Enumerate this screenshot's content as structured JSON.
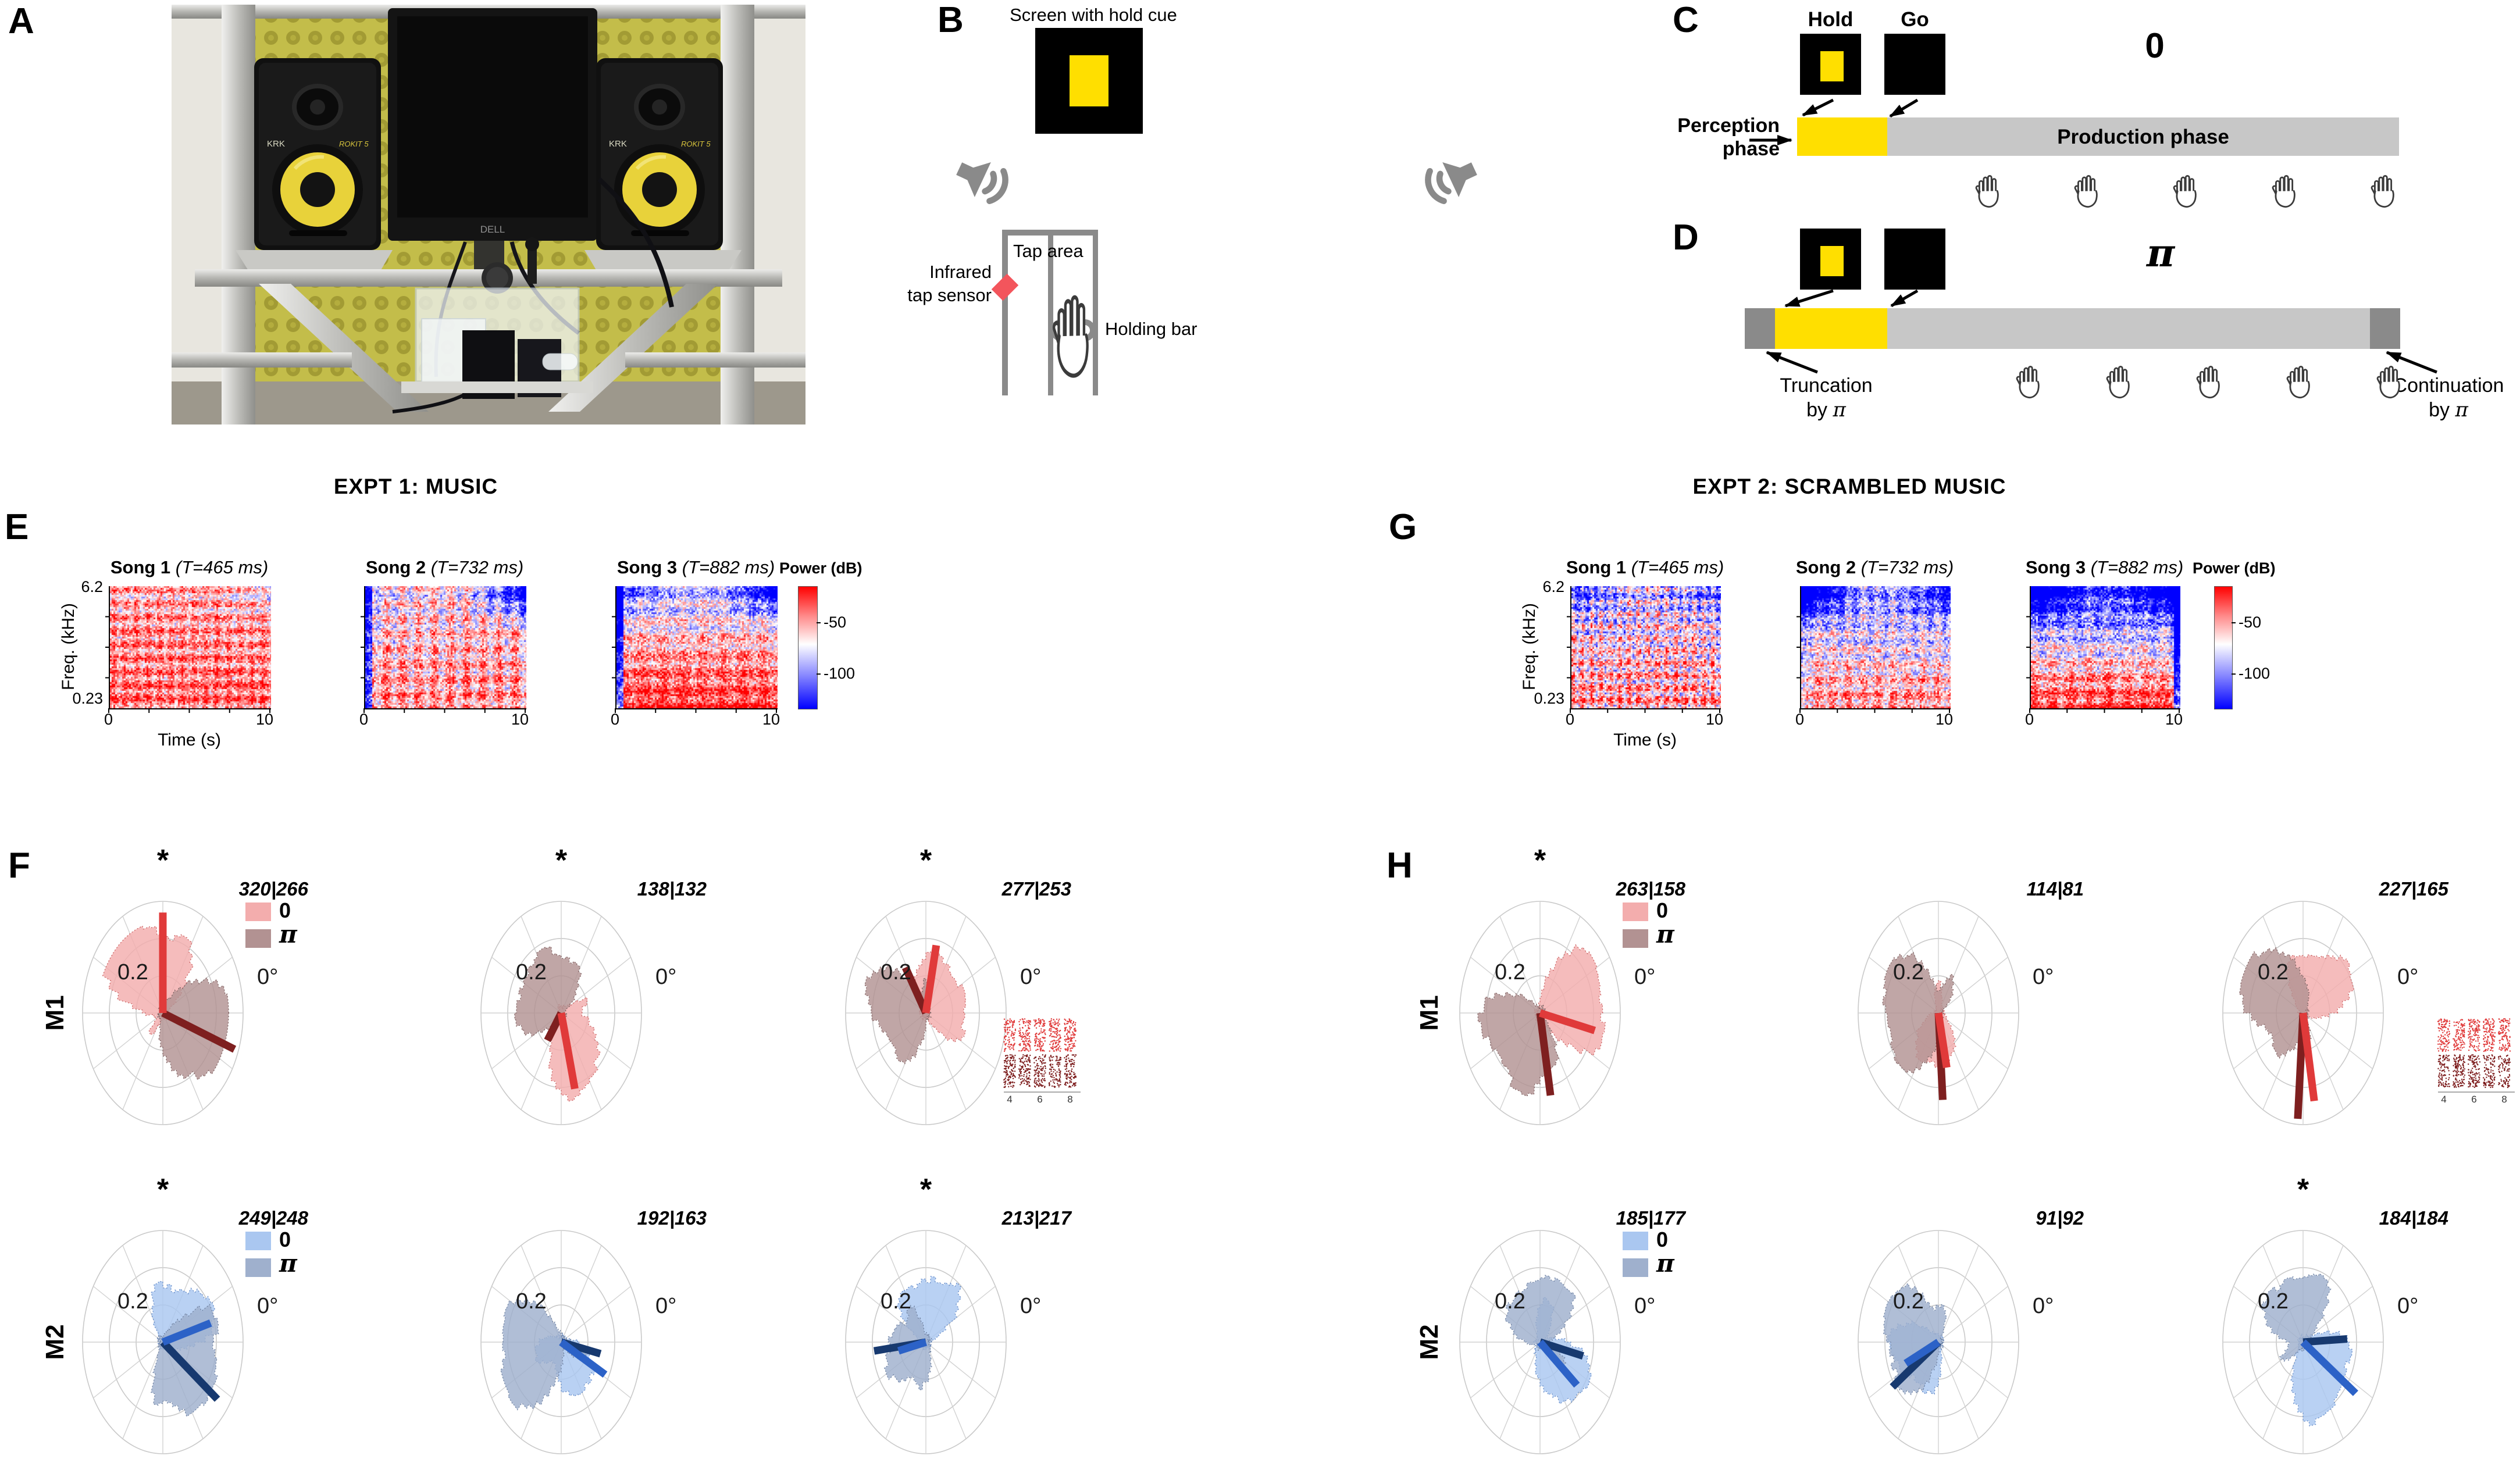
{
  "asterisk": "*",
  "panel_a": {
    "label": "A",
    "monitor_brand": "DELL",
    "speaker_brand": "KRK",
    "speaker_model": "ROKIT 5"
  },
  "panel_b": {
    "label": "B",
    "screen_title": "Screen with hold cue",
    "tap_area": "Tap area",
    "sensor_line1": "Infrared",
    "sensor_line2": "tap sensor",
    "holding_bar": "Holding bar"
  },
  "panel_c": {
    "label": "C",
    "hold": "Hold",
    "go": "Go",
    "condition_symbol": "0",
    "perception_line1": "Perception",
    "perception_line2": "phase",
    "production": "Production phase"
  },
  "panel_d": {
    "label": "D",
    "condition_symbol": "π",
    "truncation_line1": "Truncation",
    "continuation_line1": "Continuation",
    "by": "by",
    "pi_symbol": "π"
  },
  "axis": {
    "freq_label": "Freq. (kHz)",
    "freq_top": "6.2",
    "freq_bottom": "0.23",
    "time_label": "Time (s)",
    "t0": "0",
    "t1": "10",
    "power_label": "Power (dB)",
    "cb_hi": "-50",
    "cb_lo": "-100"
  },
  "colors": {
    "yellow": "#ffdf00",
    "bar_gray": "#c7c7c7",
    "bar_darkgray": "#8a8a8a",
    "sensor_red": "#f3555c",
    "m1": {
      "fill0": "#f3adad",
      "edge0": "#c96060",
      "fillpi": "#b29292",
      "edgepi": "#7d5f5f",
      "line0": "#e03a3a",
      "linepi": "#7e1f1f"
    },
    "m2": {
      "fill0": "#aac7f0",
      "edge0": "#5f86c4",
      "fillpi": "#9fb0cd",
      "edgepi": "#6c7f9f",
      "line0": "#2c62c7",
      "linepi": "#17396f"
    }
  },
  "chart_data": {
    "legend": {
      "zero": "0",
      "pi": "π"
    },
    "polar_style": {
      "radial_tick": "0.2",
      "angle_label": "0°",
      "rings": [
        0.333,
        0.667,
        1.0
      ]
    },
    "spectrograms": [
      {
        "panel": "E",
        "title": "EXPT 1: MUSIC",
        "type": "heatmap",
        "freq_range_khz": [
          0.23,
          6.2
        ],
        "time_range_s": [
          0,
          10
        ],
        "power_ticks_db": [
          -50,
          -100
        ],
        "songs": [
          {
            "name": "Song 1",
            "tempo": "(T=465 ms)",
            "texture": {
              "base": 0.45,
              "vgrad": 0.15,
              "noise": 0.9,
              "hbands": 9,
              "hamp": 0.25,
              "vstripes": 14,
              "vamp": 0.15,
              "tl": 0.0,
              "tr": 0.25,
              "lcol": 0.0,
              "rcol": 0.0
            }
          },
          {
            "name": "Song 2",
            "tempo": "(T=732 ms)",
            "texture": {
              "base": 0.25,
              "vgrad": 0.2,
              "noise": 0.95,
              "hbands": 8,
              "hamp": 0.2,
              "vstripes": 10,
              "vamp": 0.25,
              "tl": 0.15,
              "tr": 0.95,
              "lcol": 0.9,
              "rcol": 0.0
            }
          },
          {
            "name": "Song 3",
            "tempo": "(T=882 ms)",
            "texture": {
              "base": 0.3,
              "vgrad": 0.55,
              "noise": 0.95,
              "hbands": 7,
              "hamp": 0.2,
              "vstripes": 8,
              "vamp": 0.12,
              "tl": 0.35,
              "tr": 0.75,
              "lcol": 1.0,
              "rcol": 0.0
            }
          }
        ]
      },
      {
        "panel": "G",
        "title": "EXPT 2: SCRAMBLED MUSIC",
        "type": "heatmap",
        "freq_range_khz": [
          0.23,
          6.2
        ],
        "time_range_s": [
          0,
          10
        ],
        "power_ticks_db": [
          -50,
          -100
        ],
        "songs": [
          {
            "name": "Song 1",
            "tempo": "(T=465 ms)",
            "texture": {
              "base": 0.12,
              "vgrad": 0.3,
              "noise": 1.1,
              "hbands": 10,
              "hamp": 0.3,
              "vstripes": 16,
              "vamp": 0.3,
              "tl": 0.5,
              "tr": 0.35,
              "lcol": 0.0,
              "rcol": 0.0
            }
          },
          {
            "name": "Song 2",
            "tempo": "(T=732 ms)",
            "texture": {
              "base": 0.0,
              "vgrad": 0.45,
              "noise": 1.0,
              "hbands": 8,
              "hamp": 0.2,
              "vstripes": 10,
              "vamp": 0.2,
              "tl": 1.1,
              "tr": 0.45,
              "lcol": 0.3,
              "rcol": 0.0
            }
          },
          {
            "name": "Song 3",
            "tempo": "(T=882 ms)",
            "texture": {
              "base": -0.05,
              "vgrad": 0.85,
              "noise": 1.0,
              "hbands": 8,
              "hamp": 0.2,
              "vstripes": 8,
              "vamp": 0.15,
              "tl": 0.7,
              "tr": 0.6,
              "lcol": 0.0,
              "rcol": 0.9
            }
          }
        ]
      }
    ],
    "polar_rows": [
      {
        "panel": "F",
        "monkey": "M1",
        "palette": "m1",
        "plots": [
          {
            "counts": "320|266",
            "sig": true,
            "legend": true,
            "raster": false,
            "line0": {
              "deg": 90,
              "r": 0.9
            },
            "linepi": {
              "deg": -20,
              "r": 0.95
            },
            "lobes0": [
              [
                112,
                35,
                0.72
              ],
              [
                145,
                18,
                0.5
              ],
              [
                60,
                15,
                0.4
              ],
              [
                230,
                10,
                0.18
              ]
            ],
            "lobespi": [
              [
                5,
                28,
                0.78
              ],
              [
                -35,
                20,
                0.55
              ],
              [
                -75,
                18,
                0.4
              ],
              [
                90,
                8,
                0.15
              ]
            ]
          },
          {
            "counts": "138|132",
            "sig": true,
            "legend": false,
            "raster": false,
            "line0": {
              "deg": -76,
              "r": 0.7
            },
            "linepi": {
              "deg": 235,
              "r": 0.3
            },
            "lobes0": [
              [
                -50,
                35,
                0.55
              ],
              [
                -90,
                20,
                0.4
              ],
              [
                20,
                10,
                0.2
              ]
            ],
            "lobespi": [
              [
                150,
                30,
                0.42
              ],
              [
                100,
                25,
                0.4
              ],
              [
                195,
                20,
                0.35
              ],
              [
                60,
                15,
                0.3
              ]
            ]
          },
          {
            "counts": "277|253",
            "sig": true,
            "legend": false,
            "raster": true,
            "line0": {
              "deg": 78,
              "r": 0.62
            },
            "linepi": {
              "deg": 122,
              "r": 0.48
            },
            "lobes0": [
              [
                80,
                30,
                0.5
              ],
              [
                10,
                25,
                0.42
              ],
              [
                -30,
                15,
                0.3
              ]
            ],
            "lobespi": [
              [
                190,
                35,
                0.5
              ],
              [
                150,
                20,
                0.45
              ],
              [
                240,
                15,
                0.3
              ],
              [
                90,
                10,
                0.25
              ]
            ]
          }
        ]
      },
      {
        "panel": "F",
        "monkey": "M2",
        "palette": "m2",
        "plots": [
          {
            "counts": "249|248",
            "sig": true,
            "legend": true,
            "raster": false,
            "line0": {
              "deg": 16,
              "r": 0.62
            },
            "linepi": {
              "deg": -37,
              "r": 0.85
            },
            "lobes0": [
              [
                55,
                30,
                0.45
              ],
              [
                15,
                20,
                0.42
              ],
              [
                100,
                15,
                0.3
              ]
            ],
            "lobespi": [
              [
                -15,
                30,
                0.55
              ],
              [
                -65,
                25,
                0.5
              ],
              [
                25,
                15,
                0.4
              ],
              [
                -100,
                10,
                0.3
              ]
            ]
          },
          {
            "counts": "192|163",
            "sig": false,
            "legend": false,
            "raster": false,
            "line0": {
              "deg": -28,
              "r": 0.62
            },
            "linepi": {
              "deg": -12,
              "r": 0.5
            },
            "lobes0": [
              [
                -35,
                25,
                0.4
              ],
              [
                -80,
                20,
                0.35
              ],
              [
                200,
                25,
                0.3
              ]
            ],
            "lobespi": [
              [
                190,
                35,
                0.5
              ],
              [
                230,
                25,
                0.45
              ],
              [
                150,
                20,
                0.4
              ],
              [
                -20,
                15,
                0.3
              ]
            ]
          },
          {
            "counts": "213|217",
            "sig": true,
            "legend": false,
            "raster": false,
            "line0": {
              "deg": 193,
              "r": 0.35
            },
            "linepi": {
              "deg": 187,
              "r": 0.65
            },
            "lobes0": [
              [
                85,
                30,
                0.5
              ],
              [
                45,
                15,
                0.35
              ],
              [
                130,
                15,
                0.3
              ]
            ],
            "lobespi": [
              [
                175,
                30,
                0.4
              ],
              [
                260,
                20,
                0.35
              ],
              [
                215,
                15,
                0.3
              ],
              [
                120,
                10,
                0.25
              ]
            ]
          }
        ]
      },
      {
        "panel": "H",
        "monkey": "M1",
        "palette": "m1",
        "plots": [
          {
            "counts": "263|158",
            "sig": true,
            "legend": true,
            "raster": false,
            "line0": {
              "deg": -13,
              "r": 0.7
            },
            "linepi": {
              "deg": -80,
              "r": 0.75
            },
            "lobes0": [
              [
                10,
                30,
                0.62
              ],
              [
                50,
                20,
                0.45
              ],
              [
                -25,
                15,
                0.4
              ]
            ],
            "lobespi": [
              [
                215,
                35,
                0.5
              ],
              [
                260,
                20,
                0.45
              ],
              [
                175,
                20,
                0.4
              ],
              [
                -65,
                10,
                0.3
              ]
            ]
          },
          {
            "counts": "114|81",
            "sig": false,
            "legend": false,
            "raster": false,
            "line0": {
              "deg": -78,
              "r": 0.5
            },
            "linepi": {
              "deg": -86,
              "r": 0.78
            },
            "lobes0": [
              [
                -80,
                30,
                0.4
              ],
              [
                -130,
                20,
                0.3
              ],
              [
                90,
                12,
                0.25
              ]
            ],
            "lobespi": [
              [
                180,
                40,
                0.48
              ],
              [
                135,
                25,
                0.42
              ],
              [
                235,
                25,
                0.4
              ],
              [
                60,
                15,
                0.3
              ]
            ]
          },
          {
            "counts": "227|165",
            "sig": false,
            "legend": false,
            "raster": true,
            "line0": {
              "deg": -80,
              "r": 0.8
            },
            "linepi": {
              "deg": -94,
              "r": 0.95
            },
            "lobes0": [
              [
                60,
                30,
                0.5
              ],
              [
                20,
                20,
                0.4
              ],
              [
                110,
                15,
                0.35
              ]
            ],
            "lobespi": [
              [
                130,
                35,
                0.55
              ],
              [
                170,
                25,
                0.45
              ],
              [
                230,
                20,
                0.4
              ],
              [
                280,
                12,
                0.3
              ]
            ]
          }
        ]
      },
      {
        "panel": "H",
        "monkey": "M2",
        "palette": "m2",
        "plots": [
          {
            "counts": "185|177",
            "sig": false,
            "legend": true,
            "raster": false,
            "line0": {
              "deg": -40,
              "r": 0.6
            },
            "linepi": {
              "deg": -13,
              "r": 0.55
            },
            "lobes0": [
              [
                -60,
                30,
                0.5
              ],
              [
                -20,
                20,
                0.4
              ],
              [
                75,
                20,
                0.35
              ]
            ],
            "lobespi": [
              [
                95,
                30,
                0.5
              ],
              [
                45,
                20,
                0.4
              ],
              [
                150,
                20,
                0.35
              ],
              [
                -30,
                12,
                0.3
              ]
            ]
          },
          {
            "counts": "91|92",
            "sig": false,
            "legend": false,
            "raster": false,
            "line0": {
              "deg": 205,
              "r": 0.45
            },
            "linepi": {
              "deg": 215,
              "r": 0.7
            },
            "lobes0": [
              [
                210,
                30,
                0.42
              ],
              [
                170,
                20,
                0.35
              ],
              [
                260,
                15,
                0.3
              ]
            ],
            "lobespi": [
              [
                180,
                35,
                0.48
              ],
              [
                135,
                25,
                0.42
              ],
              [
                230,
                20,
                0.38
              ],
              [
                80,
                12,
                0.25
              ]
            ]
          },
          {
            "counts": "184|184",
            "sig": true,
            "legend": false,
            "raster": false,
            "line0": {
              "deg": -35,
              "r": 0.8
            },
            "linepi": {
              "deg": 3,
              "r": 0.55
            },
            "lobes0": [
              [
                -45,
                30,
                0.55
              ],
              [
                -90,
                20,
                0.45
              ],
              [
                0,
                15,
                0.35
              ]
            ],
            "lobespi": [
              [
                100,
                30,
                0.5
              ],
              [
                150,
                20,
                0.4
              ],
              [
                60,
                15,
                0.35
              ],
              [
                210,
                12,
                0.25
              ]
            ]
          }
        ]
      }
    ],
    "raster_insets": [
      {
        "attach": "F-M1-3",
        "xticks": [
          "4",
          "6",
          "8"
        ]
      },
      {
        "attach": "H-M1-3",
        "xticks": [
          "4",
          "6",
          "8"
        ]
      }
    ]
  }
}
